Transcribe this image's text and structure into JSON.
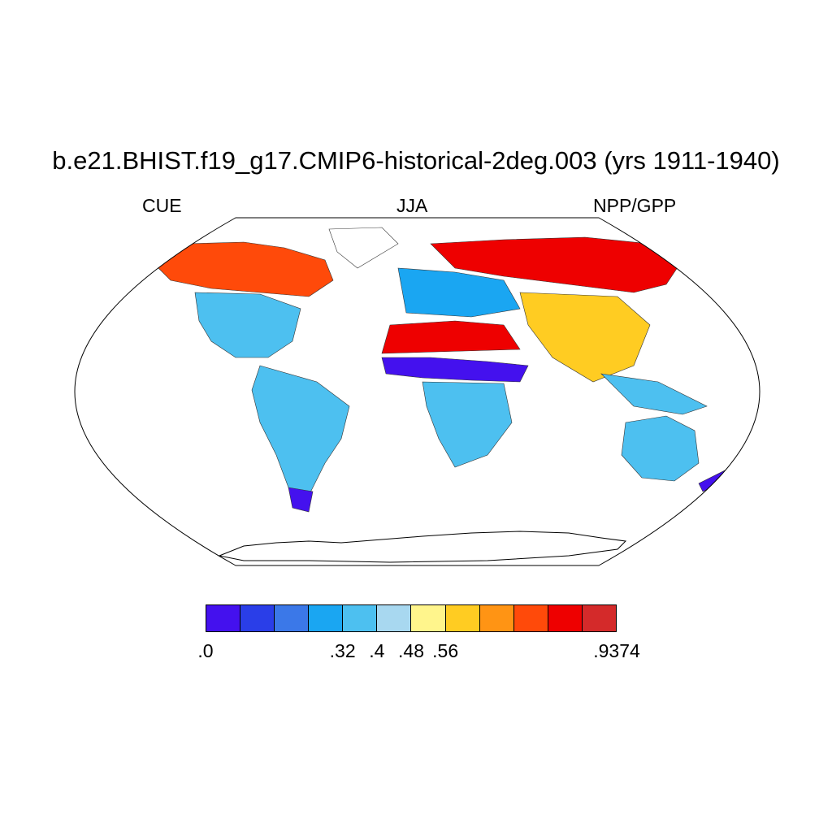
{
  "title": "b.e21.BHIST.f19_g17.CMIP6-historical-2deg.003 (yrs 1911-1940)",
  "left_label": "CUE",
  "center_label": "JJA",
  "right_label": "NPP/GPP",
  "colorbar": {
    "colors": [
      "#4411ee",
      "#2a3ee8",
      "#3b78e8",
      "#1aa6f2",
      "#4dc0f0",
      "#a8d8f0",
      "#fff58c",
      "#ffcc22",
      "#ff9414",
      "#ff4a0a",
      "#ee0000",
      "#d42a2a"
    ],
    "labels": [
      ".0",
      ".32",
      ".4",
      ".48",
      ".56",
      ".9374"
    ]
  },
  "map_regions": [
    {
      "name": "north-america-boreal",
      "color": "#ff4a0a"
    },
    {
      "name": "north-america-mid",
      "color": "#4dc0f0"
    },
    {
      "name": "eurasia-boreal",
      "color": "#ee0000"
    },
    {
      "name": "sahel-band",
      "color": "#4411ee"
    },
    {
      "name": "australia",
      "color": "#4dc0f0"
    }
  ]
}
